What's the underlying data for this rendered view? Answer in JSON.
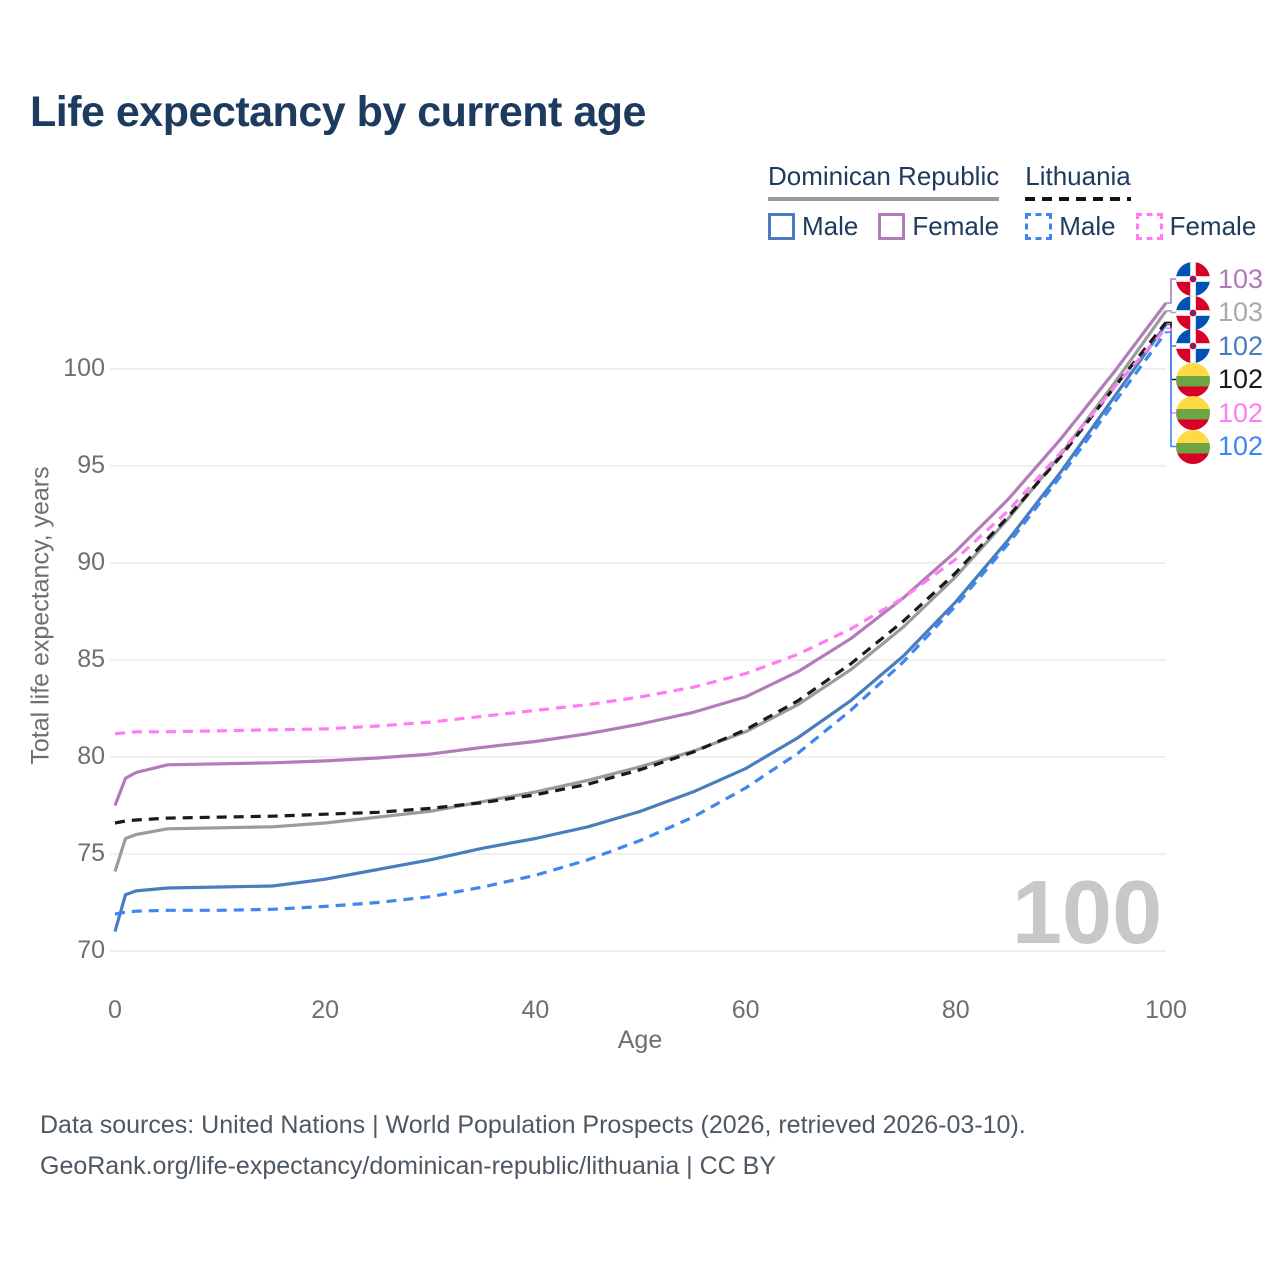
{
  "title": "Life expectancy by current age",
  "legend": {
    "groups": [
      {
        "name": "Dominican Republic",
        "line_style": "solid",
        "line_color": "#9b9b9b",
        "items": [
          {
            "label": "Male",
            "color": "#4a7dbd",
            "dashed": false
          },
          {
            "label": "Female",
            "color": "#b27cb8",
            "dashed": false
          }
        ]
      },
      {
        "name": "Lithuania",
        "line_style": "dashed",
        "line_color": "#141414",
        "items": [
          {
            "label": "Male",
            "color": "#3e86f0",
            "dashed": true
          },
          {
            "label": "Female",
            "color": "#ff7df0",
            "dashed": true
          }
        ]
      }
    ]
  },
  "y_axis": {
    "label": "Total life expectancy, years"
  },
  "x_axis": {
    "label": "Age"
  },
  "watermark": "100",
  "footer": {
    "line1": "Data sources: United Nations | World Population Prospects (2026, retrieved 2026-03-10).",
    "line2": "GeoRank.org/life-expectancy/dominican-republic/lithuania | CC BY"
  },
  "end_labels": [
    {
      "value": "103",
      "flag": "dominican-republic",
      "color": "#b07ab8",
      "series_id": "dr_female"
    },
    {
      "value": "103",
      "flag": "dominican-republic",
      "color": "#a9a9a9",
      "series_id": "dr_total"
    },
    {
      "value": "102",
      "flag": "dominican-republic",
      "color": "#4a7dbd",
      "series_id": "dr_male"
    },
    {
      "value": "102",
      "flag": "lithuania",
      "color": "#1a1a1a",
      "series_id": "lt_total"
    },
    {
      "value": "102",
      "flag": "lithuania",
      "color": "#ff7df0",
      "series_id": "lt_female"
    },
    {
      "value": "102",
      "flag": "lithuania",
      "color": "#3e86f0",
      "series_id": "lt_male"
    }
  ],
  "chart_data": {
    "type": "line",
    "title": "Life expectancy by current age",
    "xlabel": "Age",
    "ylabel": "Total life expectancy, years",
    "legend_position": "top-right",
    "grid": "horizontal",
    "xlim": [
      0,
      100
    ],
    "ylim": [
      69,
      104.5
    ],
    "x_ticks": [
      0,
      20,
      40,
      60,
      80,
      100
    ],
    "y_ticks": [
      70,
      75,
      80,
      85,
      90,
      95,
      100
    ],
    "x": [
      0,
      1,
      2,
      5,
      10,
      15,
      20,
      25,
      30,
      35,
      40,
      45,
      50,
      55,
      60,
      65,
      70,
      75,
      80,
      85,
      90,
      95,
      100
    ],
    "series": [
      {
        "id": "dr_total",
        "name": "Dominican Republic Total",
        "color": "#9b9b9b",
        "dashed": false,
        "values": [
          74.1,
          75.8,
          76.0,
          76.3,
          76.35,
          76.4,
          76.6,
          76.9,
          77.2,
          77.7,
          78.2,
          78.8,
          79.5,
          80.3,
          81.3,
          82.7,
          84.5,
          86.7,
          89.3,
          92.3,
          95.6,
          99.2,
          103.0
        ]
      },
      {
        "id": "dr_female",
        "name": "Dominican Republic Female",
        "color": "#b27cb8",
        "dashed": false,
        "values": [
          77.5,
          78.9,
          79.2,
          79.6,
          79.65,
          79.7,
          79.8,
          79.95,
          80.15,
          80.5,
          80.8,
          81.2,
          81.7,
          82.3,
          83.1,
          84.4,
          86.1,
          88.2,
          90.6,
          93.3,
          96.4,
          99.8,
          103.4
        ]
      },
      {
        "id": "dr_male",
        "name": "Dominican Republic Male",
        "color": "#4a7dbd",
        "dashed": false,
        "values": [
          71.0,
          72.9,
          73.1,
          73.25,
          73.3,
          73.35,
          73.7,
          74.2,
          74.7,
          75.3,
          75.8,
          76.4,
          77.2,
          78.2,
          79.4,
          81.0,
          82.9,
          85.2,
          88.0,
          91.2,
          94.7,
          98.5,
          102.3
        ]
      },
      {
        "id": "lt_total",
        "name": "Lithuania Total",
        "color": "#1a1a1a",
        "dashed": true,
        "values": [
          76.6,
          76.7,
          76.75,
          76.85,
          76.9,
          76.95,
          77.05,
          77.15,
          77.35,
          77.65,
          78.05,
          78.6,
          79.35,
          80.25,
          81.4,
          82.9,
          84.8,
          87.0,
          89.5,
          92.4,
          95.5,
          99.0,
          102.4
        ]
      },
      {
        "id": "lt_female",
        "name": "Lithuania Female",
        "color": "#ff7df0",
        "dashed": true,
        "values": [
          81.2,
          81.25,
          81.3,
          81.3,
          81.35,
          81.4,
          81.45,
          81.6,
          81.8,
          82.1,
          82.4,
          82.7,
          83.1,
          83.6,
          84.3,
          85.3,
          86.6,
          88.2,
          90.2,
          92.7,
          95.7,
          99.0,
          102.1
        ]
      },
      {
        "id": "lt_male",
        "name": "Lithuania Male",
        "color": "#3e86f0",
        "dashed": true,
        "values": [
          71.9,
          72.0,
          72.05,
          72.1,
          72.1,
          72.15,
          72.3,
          72.5,
          72.8,
          73.3,
          73.9,
          74.7,
          75.7,
          76.9,
          78.4,
          80.2,
          82.4,
          84.9,
          87.8,
          91.0,
          94.5,
          98.2,
          101.9
        ]
      }
    ]
  }
}
